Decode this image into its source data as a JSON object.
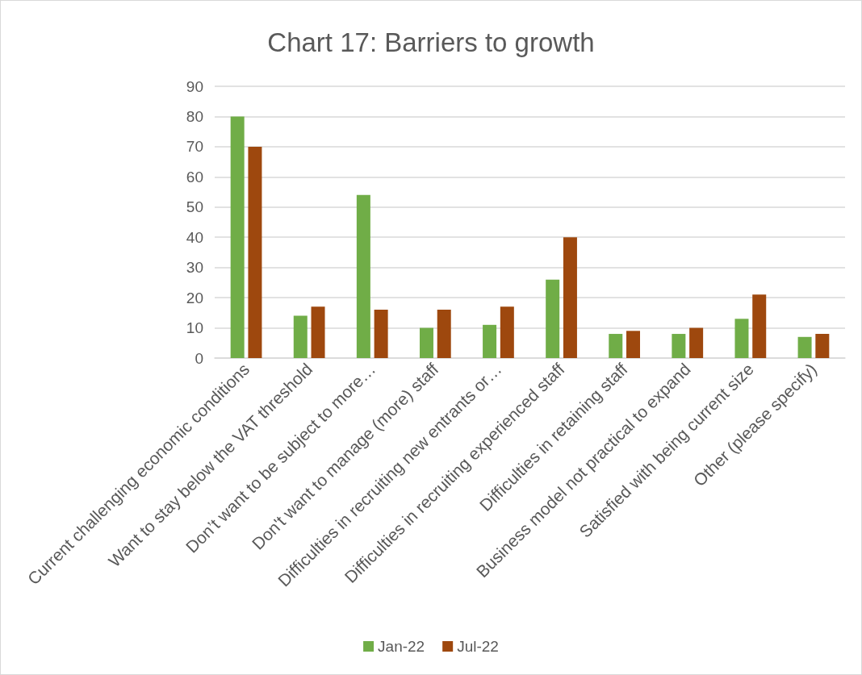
{
  "chart_data": {
    "type": "bar",
    "title": "Chart 17: Barriers to growth",
    "categories": [
      "Current challenging economic conditions",
      "Want to stay below the VAT threshold",
      "Don’t want to be subject to more…",
      "Don't want to manage (more) staff",
      "Difficulties in recruiting new entrants or…",
      "Difficulties in recruiting experienced staff",
      "Difficulties in retaining staff",
      "Business model not practical to expand",
      "Satisfied with being current size",
      "Other (please specify)"
    ],
    "series": [
      {
        "name": "Jan-22",
        "color": "#70ad47",
        "values": [
          80,
          14,
          54,
          10,
          11,
          26,
          8,
          8,
          13,
          7
        ]
      },
      {
        "name": "Jul-22",
        "color": "#9e480e",
        "values": [
          70,
          17,
          16,
          16,
          17,
          40,
          9,
          10,
          21,
          8
        ]
      }
    ],
    "ylim": [
      0,
      90
    ],
    "yticks": [
      0,
      10,
      20,
      30,
      40,
      50,
      60,
      70,
      80,
      90
    ],
    "grid": "y",
    "legend": "bottom"
  }
}
